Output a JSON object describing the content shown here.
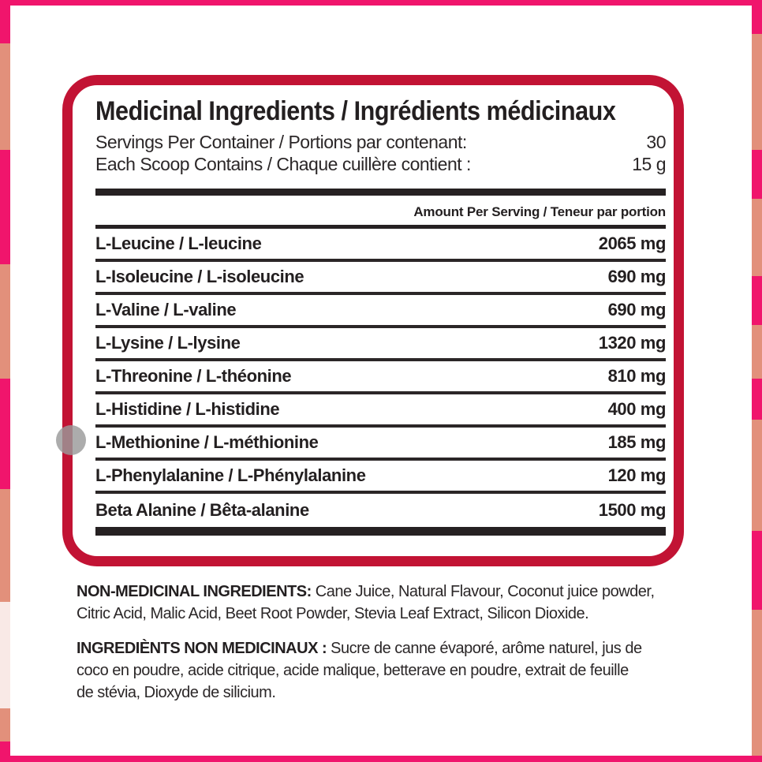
{
  "colors": {
    "pink": "#F0156C",
    "salmon": "#E2907B",
    "panel-border": "#C21334",
    "bar": "#262122",
    "text": "#231F20",
    "muted-text": "#2B2728",
    "circle": "#9A9A9A"
  },
  "panel": {
    "title": "Medicinal Ingredients / Ingrédients médicinaux",
    "servings": {
      "label": "Servings Per Container / Portions par contenant:",
      "value": "30"
    },
    "scoop": {
      "label": "Each Scoop Contains / Chaque cuillère contient :",
      "value": "15 g"
    },
    "amount_header": "Amount Per Serving / Teneur par portion",
    "rows": [
      {
        "name": "L-Leucine / L-leucine",
        "amount": "2065 mg"
      },
      {
        "name": "L-Isoleucine / L-isoleucine",
        "amount": "690 mg"
      },
      {
        "name": "L-Valine / L-valine",
        "amount": "690 mg"
      },
      {
        "name": "L-Lysine / L-lysine",
        "amount": "1320 mg"
      },
      {
        "name": "L-Threonine / L-théonine",
        "amount": "810 mg"
      },
      {
        "name": "L-Histidine / L-histidine",
        "amount": "400 mg"
      },
      {
        "name": "L-Methionine / L-méthionine",
        "amount": "185 mg"
      },
      {
        "name": "L-Phenylalanine / L-Phénylalanine",
        "amount": "120 mg"
      },
      {
        "name": "Beta Alanine / Bêta-alanine",
        "amount": "1500 mg"
      }
    ]
  },
  "footnotes": [
    {
      "label": "NON-MEDICINAL INGREDIENTS:",
      "lines": [
        " Cane Juice, Natural Flavour, Coconut juice powder,",
        "Citric Acid, Malic Acid, Beet Root Powder, Stevia Leaf Extract, Silicon Dioxide."
      ]
    },
    {
      "label": "INGREDIÈNTS NON MEDICINAUX :",
      "lines": [
        " Sucre de canne évaporé, arôme naturel, jus de",
        "coco en poudre, acide citrique, acide malique, betterave en poudre, extrait de feuille",
        "de stévia, Dioxyde de silicium."
      ]
    }
  ]
}
